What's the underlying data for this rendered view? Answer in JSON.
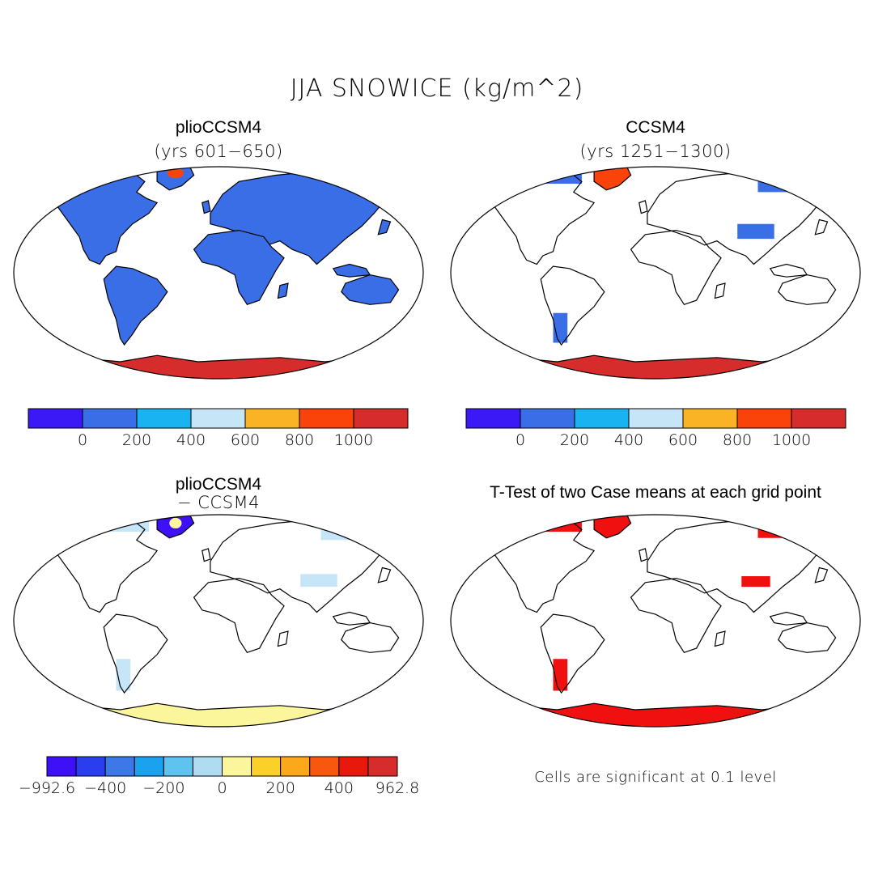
{
  "figure": {
    "title": "JJA SNOWICE (kg/m^2)"
  },
  "panels": {
    "top_left": {
      "title": "plioCCSM4",
      "subtitle": "(yrs 601−650)"
    },
    "top_right": {
      "title": "CCSM4",
      "subtitle": "(yrs 1251−1300)"
    },
    "bottom_left": {
      "title": "plioCCSM4",
      "subtitle": "− CCSM4"
    },
    "bottom_right": {
      "title": "T-Test of two Case means at each grid point",
      "note": "Cells are significant at 0.1 level"
    }
  },
  "colorbar_abs": {
    "colors": [
      "#3b19f7",
      "#3a6ee6",
      "#19b3f2",
      "#c6e5f7",
      "#fbb326",
      "#f9430b",
      "#d62c2c"
    ],
    "ticks": [
      "0",
      "200",
      "400",
      "600",
      "800",
      "1000"
    ]
  },
  "colorbar_diff": {
    "colors": [
      "#3e10f8",
      "#2a3ef0",
      "#3c78e8",
      "#1aa2ee",
      "#5ec3ef",
      "#afdcf1",
      "#fbf59c",
      "#fbd129",
      "#fba81a",
      "#f8580d",
      "#e8190c",
      "#d62c2c"
    ],
    "ticks": [
      "−992.6",
      "−400",
      "−200",
      "0",
      "200",
      "400",
      "962.8"
    ]
  },
  "colors": {
    "land_fill": "#3a6ee6",
    "antarctic_fill": "#d62c2c",
    "greenland_fill": "#f9430b",
    "sig_fill": "#f01010",
    "diff_light": "#c6e5f7",
    "diff_yellow": "#fbf59c",
    "coast": "#000000"
  }
}
